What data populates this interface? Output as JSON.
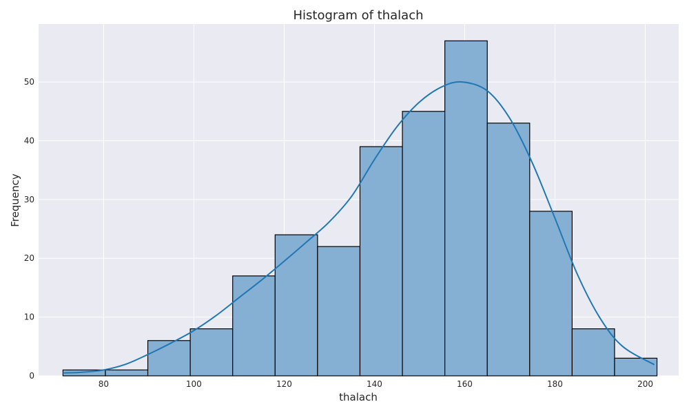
{
  "chart_data": {
    "type": "bar",
    "title": "Histogram of thalach",
    "xlabel": "thalach",
    "ylabel": "Frequency",
    "xlim": [
      65.6,
      207.4
    ],
    "ylim": [
      0,
      59.85
    ],
    "grid": true,
    "bins": [
      {
        "x0": 71,
        "x1": 80.4,
        "count": 1
      },
      {
        "x0": 80.4,
        "x1": 89.8,
        "count": 1
      },
      {
        "x0": 89.8,
        "x1": 99.2,
        "count": 6
      },
      {
        "x0": 99.2,
        "x1": 108.6,
        "count": 8
      },
      {
        "x0": 108.6,
        "x1": 118.0,
        "count": 17
      },
      {
        "x0": 118.0,
        "x1": 127.4,
        "count": 24
      },
      {
        "x0": 127.4,
        "x1": 136.8,
        "count": 22
      },
      {
        "x0": 136.8,
        "x1": 146.2,
        "count": 39
      },
      {
        "x0": 146.2,
        "x1": 155.6,
        "count": 45
      },
      {
        "x0": 155.6,
        "x1": 165.0,
        "count": 57
      },
      {
        "x0": 165.0,
        "x1": 174.4,
        "count": 43
      },
      {
        "x0": 174.4,
        "x1": 183.8,
        "count": 28
      },
      {
        "x0": 183.8,
        "x1": 193.2,
        "count": 8
      },
      {
        "x0": 193.2,
        "x1": 202.6,
        "count": 3
      }
    ],
    "kde": {
      "x": [
        71,
        75,
        80,
        85,
        90,
        95,
        100,
        105,
        110,
        115,
        120,
        125,
        130,
        135,
        140,
        145,
        150,
        155,
        159.5,
        165,
        170,
        175,
        180,
        185,
        190,
        195,
        202
      ],
      "y": [
        0.5,
        0.6,
        1.0,
        2.0,
        3.7,
        5.6,
        7.7,
        10.3,
        13.3,
        16.3,
        19.5,
        22.8,
        26.2,
        30.6,
        36.8,
        42.4,
        46.6,
        49.2,
        50.0,
        48.5,
        43.8,
        36.2,
        26.8,
        17.2,
        9.8,
        5.0,
        1.9
      ]
    },
    "x_ticks": [
      80,
      100,
      120,
      140,
      160,
      180,
      200
    ],
    "y_ticks": [
      0,
      10,
      20,
      30,
      40,
      50
    ],
    "colors": {
      "bar_fill": "#85b0d4",
      "bar_edge": "#000000",
      "kde_line": "#1f77b4",
      "plot_bg": "#eaeaf2",
      "grid": "#ffffff"
    }
  }
}
